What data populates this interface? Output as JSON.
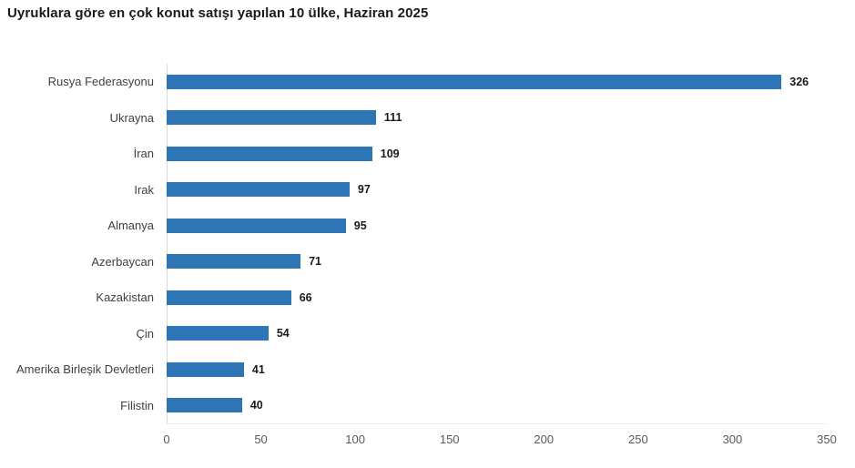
{
  "title": "Uyruklara göre en çok konut satışı yapılan 10 ülke, Haziran 2025",
  "chart_data": {
    "type": "bar",
    "orientation": "horizontal",
    "title": "Uyruklara göre en çok konut satışı yapılan 10 ülke, Haziran 2025",
    "categories": [
      "Rusya Federasyonu",
      "Ukrayna",
      "İran",
      "Irak",
      "Almanya",
      "Azerbaycan",
      "Kazakistan",
      "Çin",
      "Amerika Birleşik Devletleri",
      "Filistin"
    ],
    "values": [
      326,
      111,
      109,
      97,
      95,
      71,
      66,
      54,
      41,
      40
    ],
    "value_labels": [
      326,
      111,
      109,
      97,
      95,
      71,
      66,
      54,
      41,
      40
    ],
    "xlabel": "",
    "ylabel": "",
    "xlim": [
      0,
      350
    ],
    "xticks": [
      0,
      50,
      100,
      150,
      200,
      250,
      300,
      350
    ],
    "grid": false,
    "legend": "none"
  },
  "colors": {
    "bar": "#2E75B6",
    "title_text": "#1a1a1a",
    "category_text": "#404040",
    "value_text": "#1a1a1a",
    "y_axis_line": "#d9d9d9",
    "x_axis_line": "#ececec",
    "tick_text": "#595959",
    "background": "#ffffff"
  }
}
